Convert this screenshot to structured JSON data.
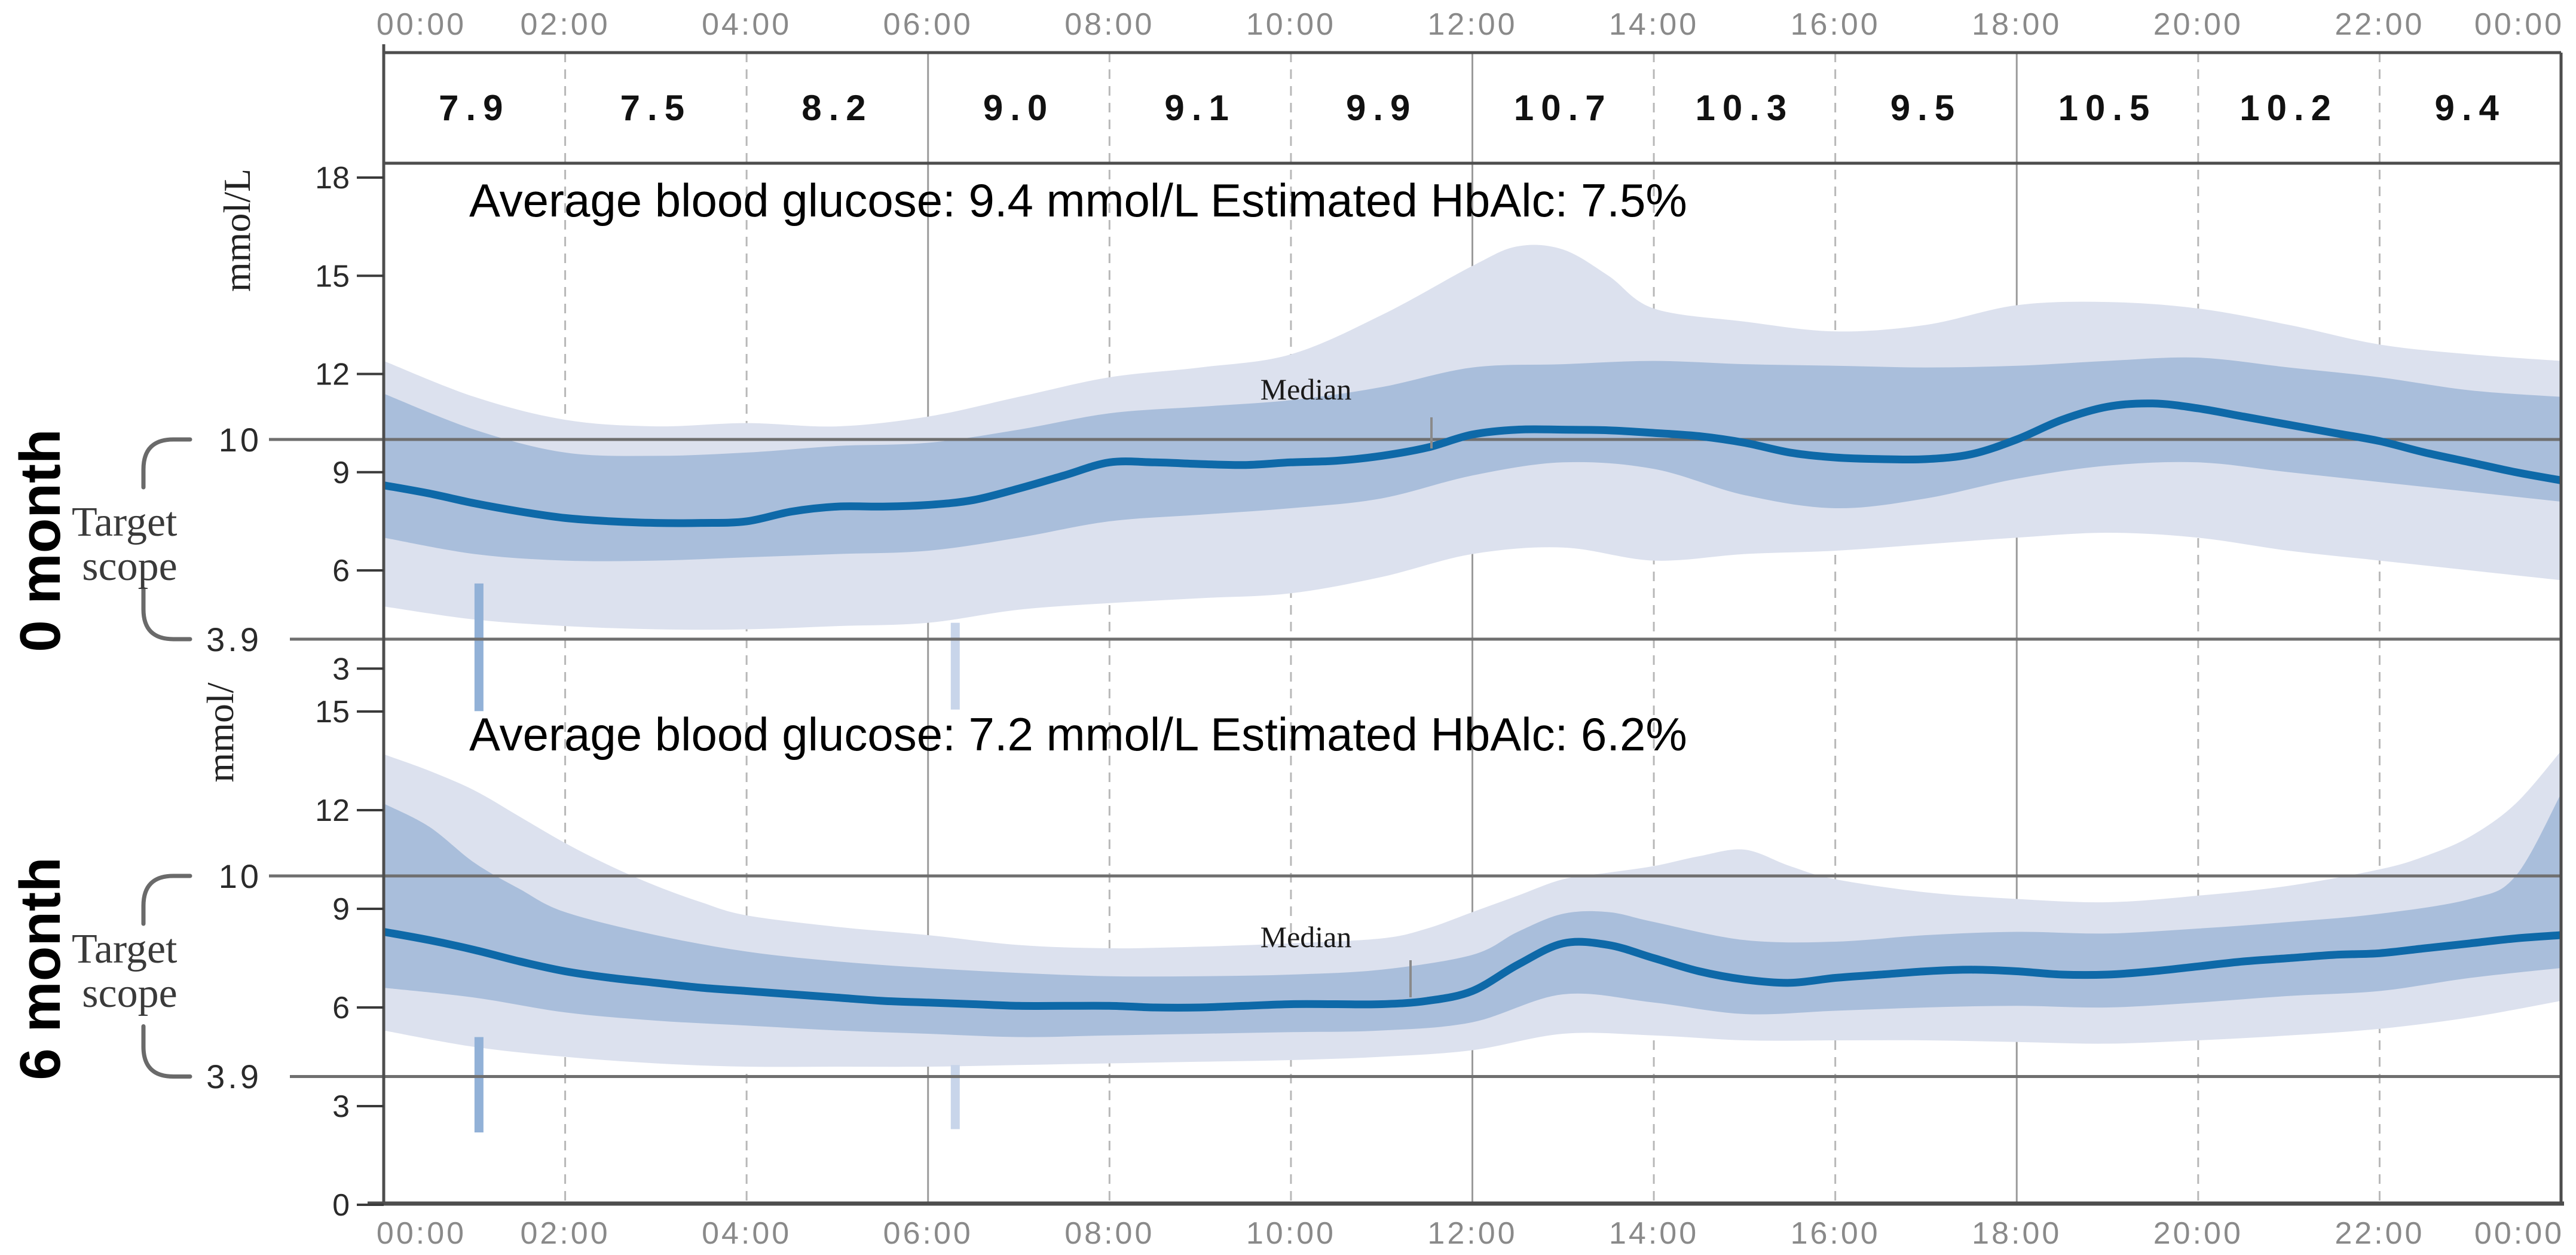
{
  "header": {
    "time_labels": [
      "00:00",
      "02:00",
      "04:00",
      "06:00",
      "08:00",
      "10:00",
      "12:00",
      "14:00",
      "16:00",
      "18:00",
      "20:00",
      "22:00",
      "00:00"
    ],
    "two_hour_averages": [
      "7.9",
      "7.5",
      "8.2",
      "9.0",
      "9.1",
      "9.9",
      "10.7",
      "10.3",
      "9.5",
      "10.5",
      "10.2",
      "9.4"
    ]
  },
  "footer": {
    "time_labels": [
      "00:00",
      "02:00",
      "04:00",
      "06:00",
      "08:00",
      "10:00",
      "12:00",
      "14:00",
      "16:00",
      "18:00",
      "20:00",
      "22:00",
      "00:00"
    ]
  },
  "colors": {
    "median_line": "#0e69a8",
    "inner_band": "#a9bedb",
    "outer_band": "#dce1ee",
    "spike_dark": "#92b1d7",
    "spike_light": "#c8d5ea",
    "target_line": "#6f6f6f"
  },
  "chart_data": [
    {
      "type": "area",
      "panel_label": "0 month",
      "unit_label": "mmol/L",
      "annotation": "Average blood glucose: 9.4 mmol/L Estimated HbAlc: 7.5%",
      "median_label": "Median",
      "target_label_lines": [
        "Target",
        "scope"
      ],
      "target_range": {
        "upper": "10",
        "lower": "3.9"
      },
      "target_lines": [
        10,
        3.9
      ],
      "y_ticks": [
        {
          "v": 18,
          "label": "18"
        },
        {
          "v": 15,
          "label": "15"
        },
        {
          "v": 12,
          "label": "12"
        },
        {
          "v": 9,
          "label": "9"
        },
        {
          "v": 6,
          "label": "6"
        },
        {
          "v": 3,
          "label": "3"
        }
      ],
      "ylim": [
        3,
        18.5
      ],
      "series": {
        "median": {
          "t": [
            0,
            0.5,
            1,
            1.5,
            2,
            2.5,
            3,
            3.5,
            4,
            4.5,
            5,
            5.5,
            6,
            6.5,
            7,
            7.5,
            8,
            8.5,
            9,
            9.5,
            10,
            10.5,
            11,
            11.5,
            12,
            12.5,
            13,
            13.5,
            14,
            14.5,
            15,
            15.5,
            16,
            16.5,
            17,
            17.5,
            18,
            18.5,
            19,
            19.5,
            20,
            20.5,
            21,
            21.5,
            22,
            22.5,
            23,
            23.5,
            24
          ],
          "v": [
            8.6,
            8.35,
            8.05,
            7.8,
            7.6,
            7.5,
            7.45,
            7.45,
            7.5,
            7.8,
            7.95,
            7.95,
            8.0,
            8.15,
            8.5,
            8.9,
            9.3,
            9.3,
            9.25,
            9.22,
            9.3,
            9.35,
            9.5,
            9.75,
            10.15,
            10.3,
            10.3,
            10.28,
            10.2,
            10.1,
            9.9,
            9.6,
            9.45,
            9.4,
            9.4,
            9.55,
            10.0,
            10.6,
            11.0,
            11.1,
            10.95,
            10.7,
            10.45,
            10.2,
            9.95,
            9.6,
            9.3,
            9.0,
            8.75
          ]
        },
        "p25_75_upper": {
          "t": [
            0,
            1,
            2,
            3,
            4,
            5,
            6,
            7,
            8,
            9,
            10,
            11,
            12,
            13,
            14,
            15,
            16,
            17,
            18,
            19,
            20,
            21,
            22,
            23,
            24
          ],
          "v": [
            11.4,
            10.3,
            9.6,
            9.5,
            9.6,
            9.8,
            9.9,
            10.3,
            10.8,
            11.0,
            11.2,
            11.6,
            12.2,
            12.3,
            12.4,
            12.3,
            12.25,
            12.2,
            12.25,
            12.4,
            12.5,
            12.2,
            11.9,
            11.5,
            11.3
          ]
        },
        "p25_75_lower": {
          "t": [
            0,
            1,
            2,
            3,
            4,
            5,
            6,
            7,
            8,
            9,
            10,
            11,
            12,
            13,
            14,
            15,
            16,
            17,
            18,
            19,
            20,
            21,
            22,
            23,
            24
          ],
          "v": [
            7.0,
            6.5,
            6.3,
            6.3,
            6.4,
            6.5,
            6.6,
            7.0,
            7.5,
            7.7,
            7.9,
            8.2,
            8.9,
            9.3,
            9.1,
            8.3,
            7.9,
            8.2,
            8.8,
            9.2,
            9.3,
            9.0,
            8.7,
            8.4,
            8.1
          ]
        },
        "p10_90_upper": {
          "t": [
            0,
            1,
            2,
            3,
            4,
            5,
            6,
            7,
            8,
            9,
            10,
            11,
            12,
            12.5,
            13,
            13.5,
            14,
            15,
            16,
            17,
            18,
            19,
            20,
            21,
            22,
            23,
            24
          ],
          "v": [
            12.4,
            11.3,
            10.6,
            10.4,
            10.5,
            10.4,
            10.7,
            11.3,
            11.9,
            12.2,
            12.6,
            13.8,
            15.3,
            15.9,
            15.8,
            15.0,
            14.0,
            13.6,
            13.3,
            13.5,
            14.1,
            14.2,
            14.0,
            13.5,
            12.9,
            12.6,
            12.4
          ]
        },
        "p10_90_lower": {
          "t": [
            0,
            1,
            2,
            3,
            4,
            5,
            6,
            7,
            8,
            9,
            10,
            11,
            12,
            13,
            14,
            15,
            16,
            17,
            18,
            19,
            20,
            21,
            22,
            23,
            24
          ],
          "v": [
            4.9,
            4.5,
            4.3,
            4.2,
            4.2,
            4.3,
            4.4,
            4.8,
            5.0,
            5.15,
            5.3,
            5.8,
            6.5,
            6.7,
            6.3,
            6.5,
            6.6,
            6.8,
            7.0,
            7.15,
            7.0,
            6.6,
            6.3,
            6.0,
            5.7
          ]
        }
      },
      "spikes": [
        {
          "t": 1.05,
          "from": 5.6,
          "to": 1.7,
          "shade": "dark"
        },
        {
          "t": 6.3,
          "from": 4.4,
          "to": 1.75,
          "shade": "light"
        }
      ]
    },
    {
      "type": "area",
      "panel_label": "6 month",
      "unit_label": "mmol/",
      "annotation": "Average blood glucose: 7.2 mmol/L Estimated HbAlc: 6.2%",
      "median_label": "Median",
      "target_label_lines": [
        "Target",
        "scope"
      ],
      "target_range": {
        "upper": "10",
        "lower": "3.9"
      },
      "target_lines": [
        10,
        3.9
      ],
      "y_ticks": [
        {
          "v": 15,
          "label": "15"
        },
        {
          "v": 12,
          "label": "12"
        },
        {
          "v": 9,
          "label": "9"
        },
        {
          "v": 6,
          "label": "6"
        },
        {
          "v": 3,
          "label": "3"
        },
        {
          "v": 0,
          "label": "0"
        }
      ],
      "ylim": [
        0,
        15.5
      ],
      "series": {
        "median": {
          "t": [
            0,
            0.5,
            1,
            1.5,
            2,
            2.5,
            3,
            3.5,
            4,
            4.5,
            5,
            5.5,
            6,
            6.5,
            7,
            7.5,
            8,
            8.5,
            9,
            9.5,
            10,
            10.5,
            11,
            11.5,
            12,
            12.5,
            13,
            13.5,
            14,
            14.5,
            15,
            15.5,
            16,
            16.5,
            17,
            17.5,
            18,
            18.5,
            19,
            19.5,
            20,
            20.5,
            21,
            21.5,
            22,
            22.5,
            23,
            23.5,
            24
          ],
          "v": [
            8.3,
            8.05,
            7.75,
            7.4,
            7.1,
            6.9,
            6.75,
            6.6,
            6.5,
            6.4,
            6.3,
            6.2,
            6.15,
            6.1,
            6.05,
            6.05,
            6.05,
            6.0,
            6.0,
            6.05,
            6.1,
            6.1,
            6.1,
            6.2,
            6.5,
            7.3,
            7.95,
            7.9,
            7.5,
            7.1,
            6.85,
            6.75,
            6.9,
            7.0,
            7.1,
            7.15,
            7.1,
            7.0,
            7.0,
            7.1,
            7.25,
            7.4,
            7.5,
            7.6,
            7.65,
            7.8,
            7.95,
            8.1,
            8.2
          ]
        },
        "p25_75_upper": {
          "t": [
            0,
            0.5,
            1,
            1.5,
            2,
            3,
            4,
            5,
            6,
            7,
            8,
            9,
            10,
            11,
            12,
            12.5,
            13,
            13.5,
            14,
            15,
            16,
            17,
            18,
            19,
            20,
            21,
            22,
            23,
            23.5,
            24
          ],
          "v": [
            12.2,
            11.5,
            10.4,
            9.6,
            8.9,
            8.2,
            7.7,
            7.4,
            7.2,
            7.05,
            6.95,
            6.95,
            7.0,
            7.15,
            7.6,
            8.3,
            8.85,
            8.9,
            8.6,
            8.05,
            8.0,
            8.2,
            8.3,
            8.25,
            8.4,
            8.6,
            8.85,
            9.3,
            10.0,
            12.5
          ]
        },
        "p25_75_lower": {
          "t": [
            0,
            1,
            2,
            3,
            4,
            5,
            6,
            7,
            8,
            9,
            10,
            11,
            12,
            13,
            14,
            15,
            16,
            17,
            18,
            19,
            20,
            21,
            22,
            23,
            24
          ],
          "v": [
            6.6,
            6.3,
            5.85,
            5.6,
            5.45,
            5.3,
            5.2,
            5.1,
            5.15,
            5.2,
            5.25,
            5.3,
            5.55,
            6.4,
            6.15,
            5.8,
            5.9,
            6.0,
            6.05,
            6.0,
            6.15,
            6.35,
            6.5,
            6.9,
            7.2
          ]
        },
        "p10_90_upper": {
          "t": [
            0,
            0.5,
            1,
            1.5,
            2,
            2.5,
            3,
            3.5,
            4,
            5,
            6,
            7,
            8,
            9,
            10,
            11,
            11.5,
            12,
            12.5,
            13,
            13.5,
            14,
            14.5,
            15,
            15.5,
            16,
            17,
            18,
            19,
            20,
            21,
            22,
            22.5,
            23,
            23.5,
            24
          ],
          "v": [
            13.7,
            13.2,
            12.6,
            11.8,
            11.0,
            10.3,
            9.7,
            9.2,
            8.8,
            8.45,
            8.2,
            7.9,
            7.8,
            7.85,
            7.95,
            8.1,
            8.4,
            8.9,
            9.4,
            9.9,
            10.1,
            10.3,
            10.6,
            10.8,
            10.3,
            9.9,
            9.5,
            9.3,
            9.2,
            9.4,
            9.7,
            10.2,
            10.6,
            11.2,
            12.2,
            13.8
          ]
        },
        "p10_90_lower": {
          "t": [
            0,
            1,
            2,
            3,
            4,
            5,
            6,
            7,
            8,
            9,
            10,
            11,
            12,
            13,
            14,
            15,
            16,
            17,
            18,
            19,
            20,
            21,
            22,
            23,
            24
          ],
          "v": [
            5.3,
            4.8,
            4.5,
            4.3,
            4.2,
            4.2,
            4.2,
            4.25,
            4.3,
            4.35,
            4.4,
            4.5,
            4.7,
            5.2,
            5.15,
            5.0,
            5.0,
            5.0,
            4.95,
            4.9,
            5.0,
            5.15,
            5.35,
            5.7,
            6.2
          ]
        }
      },
      "spikes": [
        {
          "t": 1.05,
          "from": 5.1,
          "to": 2.2,
          "shade": "dark"
        },
        {
          "t": 6.3,
          "from": 4.25,
          "to": 2.3,
          "shade": "light"
        }
      ]
    }
  ]
}
